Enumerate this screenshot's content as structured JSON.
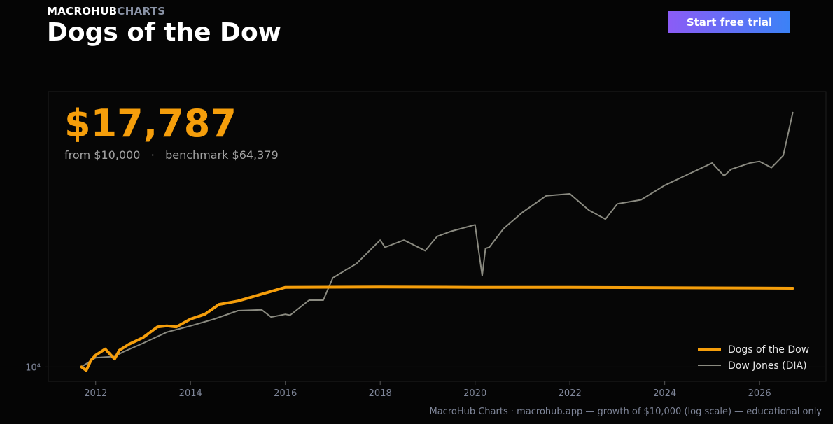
{
  "brand": {
    "part1": "MACROHUB",
    "part2": "CHARTS"
  },
  "header": {
    "title": "Dogs of the Dow",
    "cta_label": "Start free trial"
  },
  "summary": {
    "final_value": "$17,787",
    "from_text": "from $10,000",
    "separator": "·",
    "benchmark_text": "benchmark $64,379"
  },
  "footer": {
    "text": "MacroHub Charts · macrohub.app  —  growth of $10,000 (log scale) — educational only"
  },
  "colors": {
    "strategy": "#f59e0b",
    "benchmark": "#8a8a80",
    "background": "#050505",
    "axis_text": "#7f8699"
  },
  "chart_data": {
    "type": "line",
    "title": "Dogs of the Dow",
    "yscale": "log",
    "xlim": [
      2011.0,
      2027.4
    ],
    "ylim": [
      9000,
      75000
    ],
    "x_ticks": [
      2012,
      2014,
      2016,
      2018,
      2020,
      2022,
      2024,
      2026
    ],
    "y_ticks": [
      {
        "value": 10000,
        "label": "10⁴"
      }
    ],
    "grid": false,
    "legend": "bottom-right",
    "series": [
      {
        "name": "Dogs of the Dow",
        "color": "#f59e0b",
        "x": [
          2011.7,
          2011.8,
          2011.9,
          2012.0,
          2012.2,
          2012.4,
          2012.5,
          2012.7,
          2013.0,
          2013.3,
          2013.5,
          2013.7,
          2014.0,
          2014.3,
          2014.6,
          2014.8,
          2015.0,
          2016.0,
          2018.0,
          2020.0,
          2022.0,
          2024.0,
          2026.0,
          2026.7
        ],
        "values": [
          10000,
          9750,
          10500,
          10900,
          11400,
          10600,
          11300,
          11800,
          12400,
          13400,
          13500,
          13400,
          14200,
          14700,
          15800,
          16000,
          16200,
          17900,
          17950,
          17900,
          17900,
          17850,
          17800,
          17787
        ]
      },
      {
        "name": "Dow Jones (DIA)",
        "color": "#8a8a80",
        "x": [
          2011.7,
          2012.0,
          2012.4,
          2012.6,
          2013.0,
          2013.5,
          2014.0,
          2014.5,
          2015.0,
          2015.5,
          2015.7,
          2016.0,
          2016.1,
          2016.5,
          2016.8,
          2017.0,
          2017.5,
          2018.0,
          2018.1,
          2018.5,
          2018.95,
          2019.2,
          2019.5,
          2020.0,
          2020.15,
          2020.22,
          2020.3,
          2020.6,
          2021.0,
          2021.5,
          2022.0,
          2022.4,
          2022.75,
          2023.0,
          2023.5,
          2024.0,
          2024.5,
          2025.0,
          2025.25,
          2025.4,
          2025.8,
          2026.0,
          2026.25,
          2026.5,
          2026.7
        ],
        "values": [
          10000,
          10700,
          10800,
          11200,
          11900,
          12900,
          13500,
          14200,
          15100,
          15200,
          14400,
          14700,
          14600,
          16300,
          16300,
          19200,
          21300,
          25300,
          24000,
          25300,
          23400,
          26000,
          27000,
          28300,
          19500,
          23800,
          24000,
          27500,
          31000,
          35000,
          35500,
          31500,
          29500,
          33000,
          34000,
          37800,
          41000,
          44500,
          40500,
          42500,
          44500,
          45000,
          43000,
          47000,
          64379
        ]
      }
    ]
  }
}
